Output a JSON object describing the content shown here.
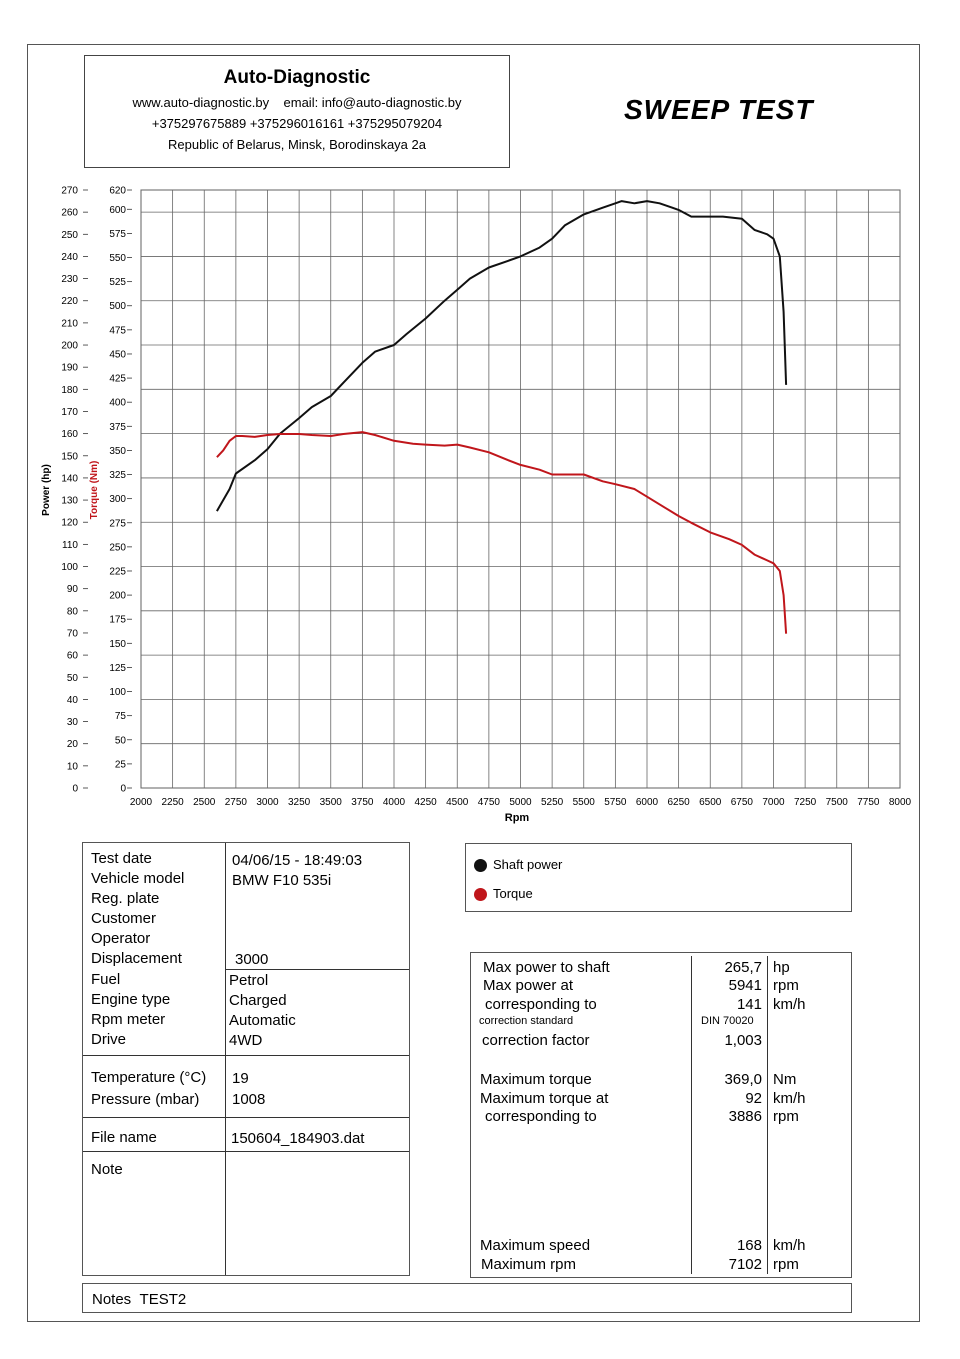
{
  "header": {
    "company": "Auto-Diagnostic",
    "web_line": "www.auto-diagnostic.by    email: info@auto-diagnostic.by",
    "phones": "+375297675889  +375296016161  +375295079204",
    "address": "Republic of Belarus, Minsk, Borodinskaya 2a"
  },
  "report_title": "SWEEP TEST",
  "chart_data": {
    "type": "line",
    "xlabel": "Rpm",
    "ylabel_left": "Power (hp)",
    "ylabel_torque": "Torque (Nm)",
    "xlim": [
      2000,
      8000
    ],
    "ylim_power": [
      0,
      270
    ],
    "ylim_torque": [
      0,
      620
    ],
    "x_ticks": [
      "2000",
      "2250",
      "2500",
      "2750",
      "3000",
      "3250",
      "3500",
      "3750",
      "4000",
      "4250",
      "4500",
      "4750",
      "5000",
      "5250",
      "5500",
      "5750",
      "6000",
      "6250",
      "6500",
      "6750",
      "7000",
      "7250",
      "7500",
      "7750",
      "8000"
    ],
    "power_ticks": [
      "0",
      "10",
      "20",
      "30",
      "40",
      "50",
      "60",
      "70",
      "80",
      "90",
      "100",
      "110",
      "120",
      "130",
      "140",
      "150",
      "160",
      "170",
      "180",
      "190",
      "200",
      "210",
      "220",
      "230",
      "240",
      "250",
      "260",
      "270"
    ],
    "torque_ticks": [
      "0",
      "25",
      "50",
      "75",
      "100",
      "125",
      "150",
      "175",
      "200",
      "225",
      "250",
      "275",
      "300",
      "325",
      "350",
      "375",
      "400",
      "425",
      "450",
      "475",
      "500",
      "525",
      "550",
      "575",
      "600",
      "620"
    ],
    "grid": true,
    "series": [
      {
        "name": "Shaft power",
        "color": "#111111",
        "axis": "power",
        "x": [
          2600,
          2700,
          2750,
          2900,
          3000,
          3100,
          3250,
          3350,
          3500,
          3600,
          3750,
          3850,
          4000,
          4100,
          4250,
          4400,
          4500,
          4600,
          4750,
          4900,
          5000,
          5150,
          5250,
          5350,
          5500,
          5650,
          5750,
          5800,
          5900,
          6000,
          6100,
          6200,
          6250,
          6350,
          6500,
          6600,
          6750,
          6850,
          6950,
          7000,
          7050,
          7080,
          7100
        ],
        "y": [
          125,
          135,
          142,
          148,
          153,
          160,
          167,
          172,
          177,
          183,
          192,
          197,
          200,
          205,
          212,
          220,
          225,
          230,
          235,
          238,
          240,
          244,
          248,
          254,
          259,
          262,
          264,
          265,
          264,
          265,
          264,
          262,
          261,
          258,
          258,
          258,
          257,
          252,
          250,
          248,
          240,
          215,
          182
        ]
      },
      {
        "name": "Torque",
        "color": "#c0161b",
        "axis": "torque",
        "x": [
          2600,
          2650,
          2700,
          2750,
          2800,
          2900,
          3000,
          3100,
          3250,
          3350,
          3500,
          3600,
          3750,
          3850,
          4000,
          4150,
          4250,
          4400,
          4500,
          4600,
          4750,
          4900,
          5000,
          5150,
          5250,
          5400,
          5500,
          5650,
          5750,
          5900,
          6000,
          6150,
          6250,
          6350,
          6500,
          6650,
          6750,
          6850,
          6950,
          7000,
          7050,
          7080,
          7100
        ],
        "y": [
          343,
          350,
          360,
          365,
          365,
          364,
          366,
          367,
          367,
          366,
          365,
          367,
          369,
          366,
          360,
          357,
          356,
          355,
          356,
          353,
          348,
          340,
          335,
          330,
          325,
          325,
          325,
          318,
          315,
          310,
          302,
          290,
          282,
          275,
          265,
          258,
          252,
          242,
          236,
          233,
          225,
          200,
          160
        ]
      }
    ]
  },
  "legend": {
    "power_label": "Shaft power",
    "torque_label": "Torque",
    "power_color": "#111111",
    "torque_color": "#c0161b"
  },
  "vehicle": {
    "test_date_label": "Test date",
    "test_date": "04/06/15 - 18:49:03",
    "vehicle_model_label": "Vehicle model",
    "vehicle_model": "BMW F10 535i",
    "reg_plate_label": "Reg. plate",
    "customer_label": "Customer",
    "operator_label": "Operator",
    "displacement_label": "Displacement",
    "displacement": "3000",
    "fuel_label": "Fuel",
    "fuel": "Petrol",
    "engine_type_label": "Engine type",
    "engine_type": "Charged",
    "rpm_meter_label": "Rpm meter",
    "rpm_meter": "Automatic",
    "drive_label": "Drive",
    "drive": "4WD",
    "temperature_label": "Temperature (°C)",
    "temperature": "19",
    "pressure_label": "Pressure (mbar)",
    "pressure": "1008",
    "file_name_label": "File name",
    "file_name": "150604_184903.dat",
    "note_label": "Note"
  },
  "results": {
    "max_power_label": "Max power to shaft",
    "max_power": "265,7",
    "max_power_unit": "hp",
    "max_power_at_label": "Max power at",
    "max_power_rpm": "5941",
    "max_power_rpm_unit": "rpm",
    "corr_to_label": "corresponding to",
    "corr_speed": "141",
    "corr_speed_unit": "km/h",
    "correction_standard_label": "correction standard",
    "correction_standard": "DIN 70020",
    "correction_factor_label": "correction factor",
    "correction_factor": "1,003",
    "max_torque_label": "Maximum torque",
    "max_torque": "369,0",
    "max_torque_unit": "Nm",
    "max_torque_at_label": "Maximum torque at",
    "max_torque_speed": "92",
    "max_torque_speed_unit": "km/h",
    "torque_corr_label": "corresponding to",
    "max_torque_rpm": "3886",
    "max_torque_rpm_unit": "rpm",
    "max_speed_label": "Maximum speed",
    "max_speed": "168",
    "max_speed_unit": "km/h",
    "max_rpm_label": "Maximum rpm",
    "max_rpm": "7102",
    "max_rpm_unit": "rpm"
  },
  "notes": {
    "label": "Notes",
    "value": "TEST2"
  }
}
